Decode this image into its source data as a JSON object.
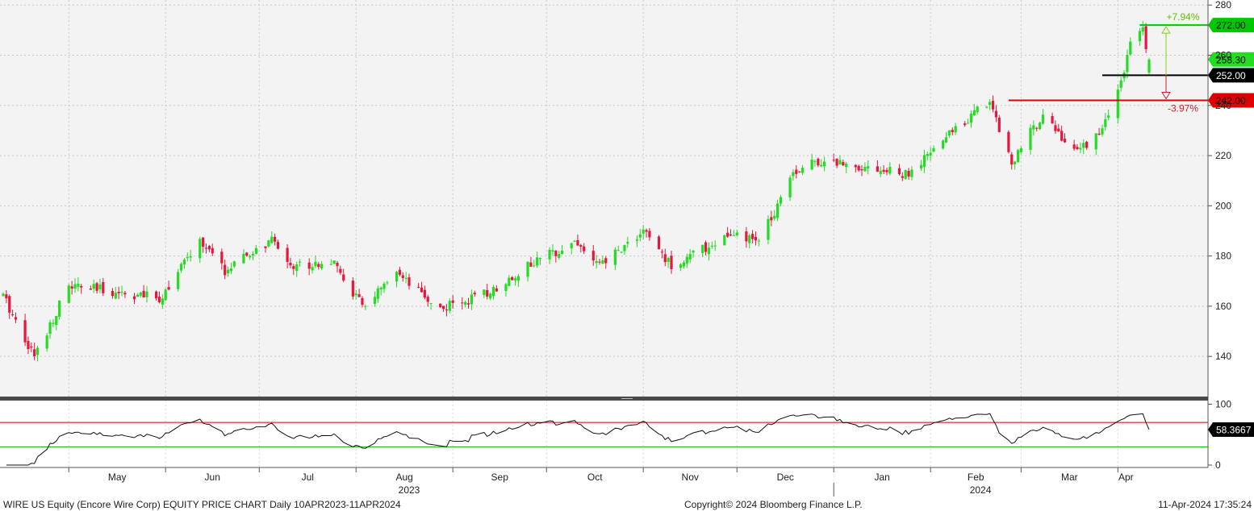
{
  "colors": {
    "up": "#22dd22",
    "down": "#e8163c",
    "target_line": "#00c800",
    "stop_line": "#e00000",
    "current_line": "#000000",
    "rsi_line": "#111111",
    "rsi_upper": "#cc0000",
    "rsi_lower": "#00b000"
  },
  "chart_data": [
    {
      "type": "candlestick",
      "title": "",
      "y_axis_side": "right",
      "ylim": [
        124,
        282
      ],
      "yticks": [
        140,
        160,
        180,
        200,
        220,
        240,
        260,
        280
      ],
      "grid": true,
      "x_range": [
        "2023-04-10",
        "2024-04-11"
      ],
      "x_month_labels": [
        "May",
        "Jun",
        "Jul",
        "Aug",
        "Sep",
        "Oct",
        "Nov",
        "Dec",
        "Jan",
        "Feb",
        "Mar",
        "Apr"
      ],
      "x_year_labels": [
        "2023",
        "2024"
      ],
      "anchors": [
        [
          "2023-04-10",
          164
        ],
        [
          "2023-04-20",
          140
        ],
        [
          "2023-05-01",
          168
        ],
        [
          "2023-05-15",
          166
        ],
        [
          "2023-05-30",
          163
        ],
        [
          "2023-06-12",
          186
        ],
        [
          "2023-06-20",
          174
        ],
        [
          "2023-07-05",
          186
        ],
        [
          "2023-07-12",
          176
        ],
        [
          "2023-07-24",
          178
        ],
        [
          "2023-08-03",
          160
        ],
        [
          "2023-08-14",
          172
        ],
        [
          "2023-08-28",
          159
        ],
        [
          "2023-09-12",
          165
        ],
        [
          "2023-09-25",
          176
        ],
        [
          "2023-10-10",
          186
        ],
        [
          "2023-10-18",
          176
        ],
        [
          "2023-11-01",
          190
        ],
        [
          "2023-11-10",
          176
        ],
        [
          "2023-11-28",
          188
        ],
        [
          "2023-12-08",
          186
        ],
        [
          "2023-12-13",
          198
        ],
        [
          "2023-12-18",
          213
        ],
        [
          "2023-12-27",
          218
        ],
        [
          "2024-01-10",
          216
        ],
        [
          "2024-01-25",
          212
        ],
        [
          "2024-02-08",
          230
        ],
        [
          "2024-02-20",
          242
        ],
        [
          "2024-02-27",
          217
        ],
        [
          "2024-03-08",
          237
        ],
        [
          "2024-03-18",
          221
        ],
        [
          "2024-03-27",
          230
        ],
        [
          "2024-04-01",
          247
        ],
        [
          "2024-04-03",
          252
        ],
        [
          "2024-04-05",
          265
        ],
        [
          "2024-04-09",
          270
        ],
        [
          "2024-04-11",
          258.3
        ]
      ],
      "levels": [
        {
          "label": "272.00",
          "value": 272.0,
          "color": "#00c800"
        },
        {
          "label": "258.30",
          "value": 258.3,
          "color": "#22dd22"
        },
        {
          "label": "252.00",
          "value": 252.0,
          "color": "#000000"
        },
        {
          "label": "242.00",
          "value": 242.0,
          "color": "#e00000"
        }
      ],
      "annotations": {
        "upside_pct": "+7.94%",
        "downside_pct": "-3.97%"
      }
    },
    {
      "type": "line",
      "title": "",
      "ylim": [
        -4,
        106
      ],
      "yticks": [
        0,
        100
      ],
      "upper_band": 70,
      "lower_band": 30,
      "last_value_label": "58.3667",
      "last_value": 58.3667
    }
  ],
  "footer": {
    "left": "WIRE US Equity (Encore Wire Corp) EQUITY PRICE CHART  Daily 10APR2023-11APR2024",
    "center": "Copyright© 2024 Bloomberg Finance L.P.",
    "right": "11-Apr-2024 17:35:24"
  }
}
